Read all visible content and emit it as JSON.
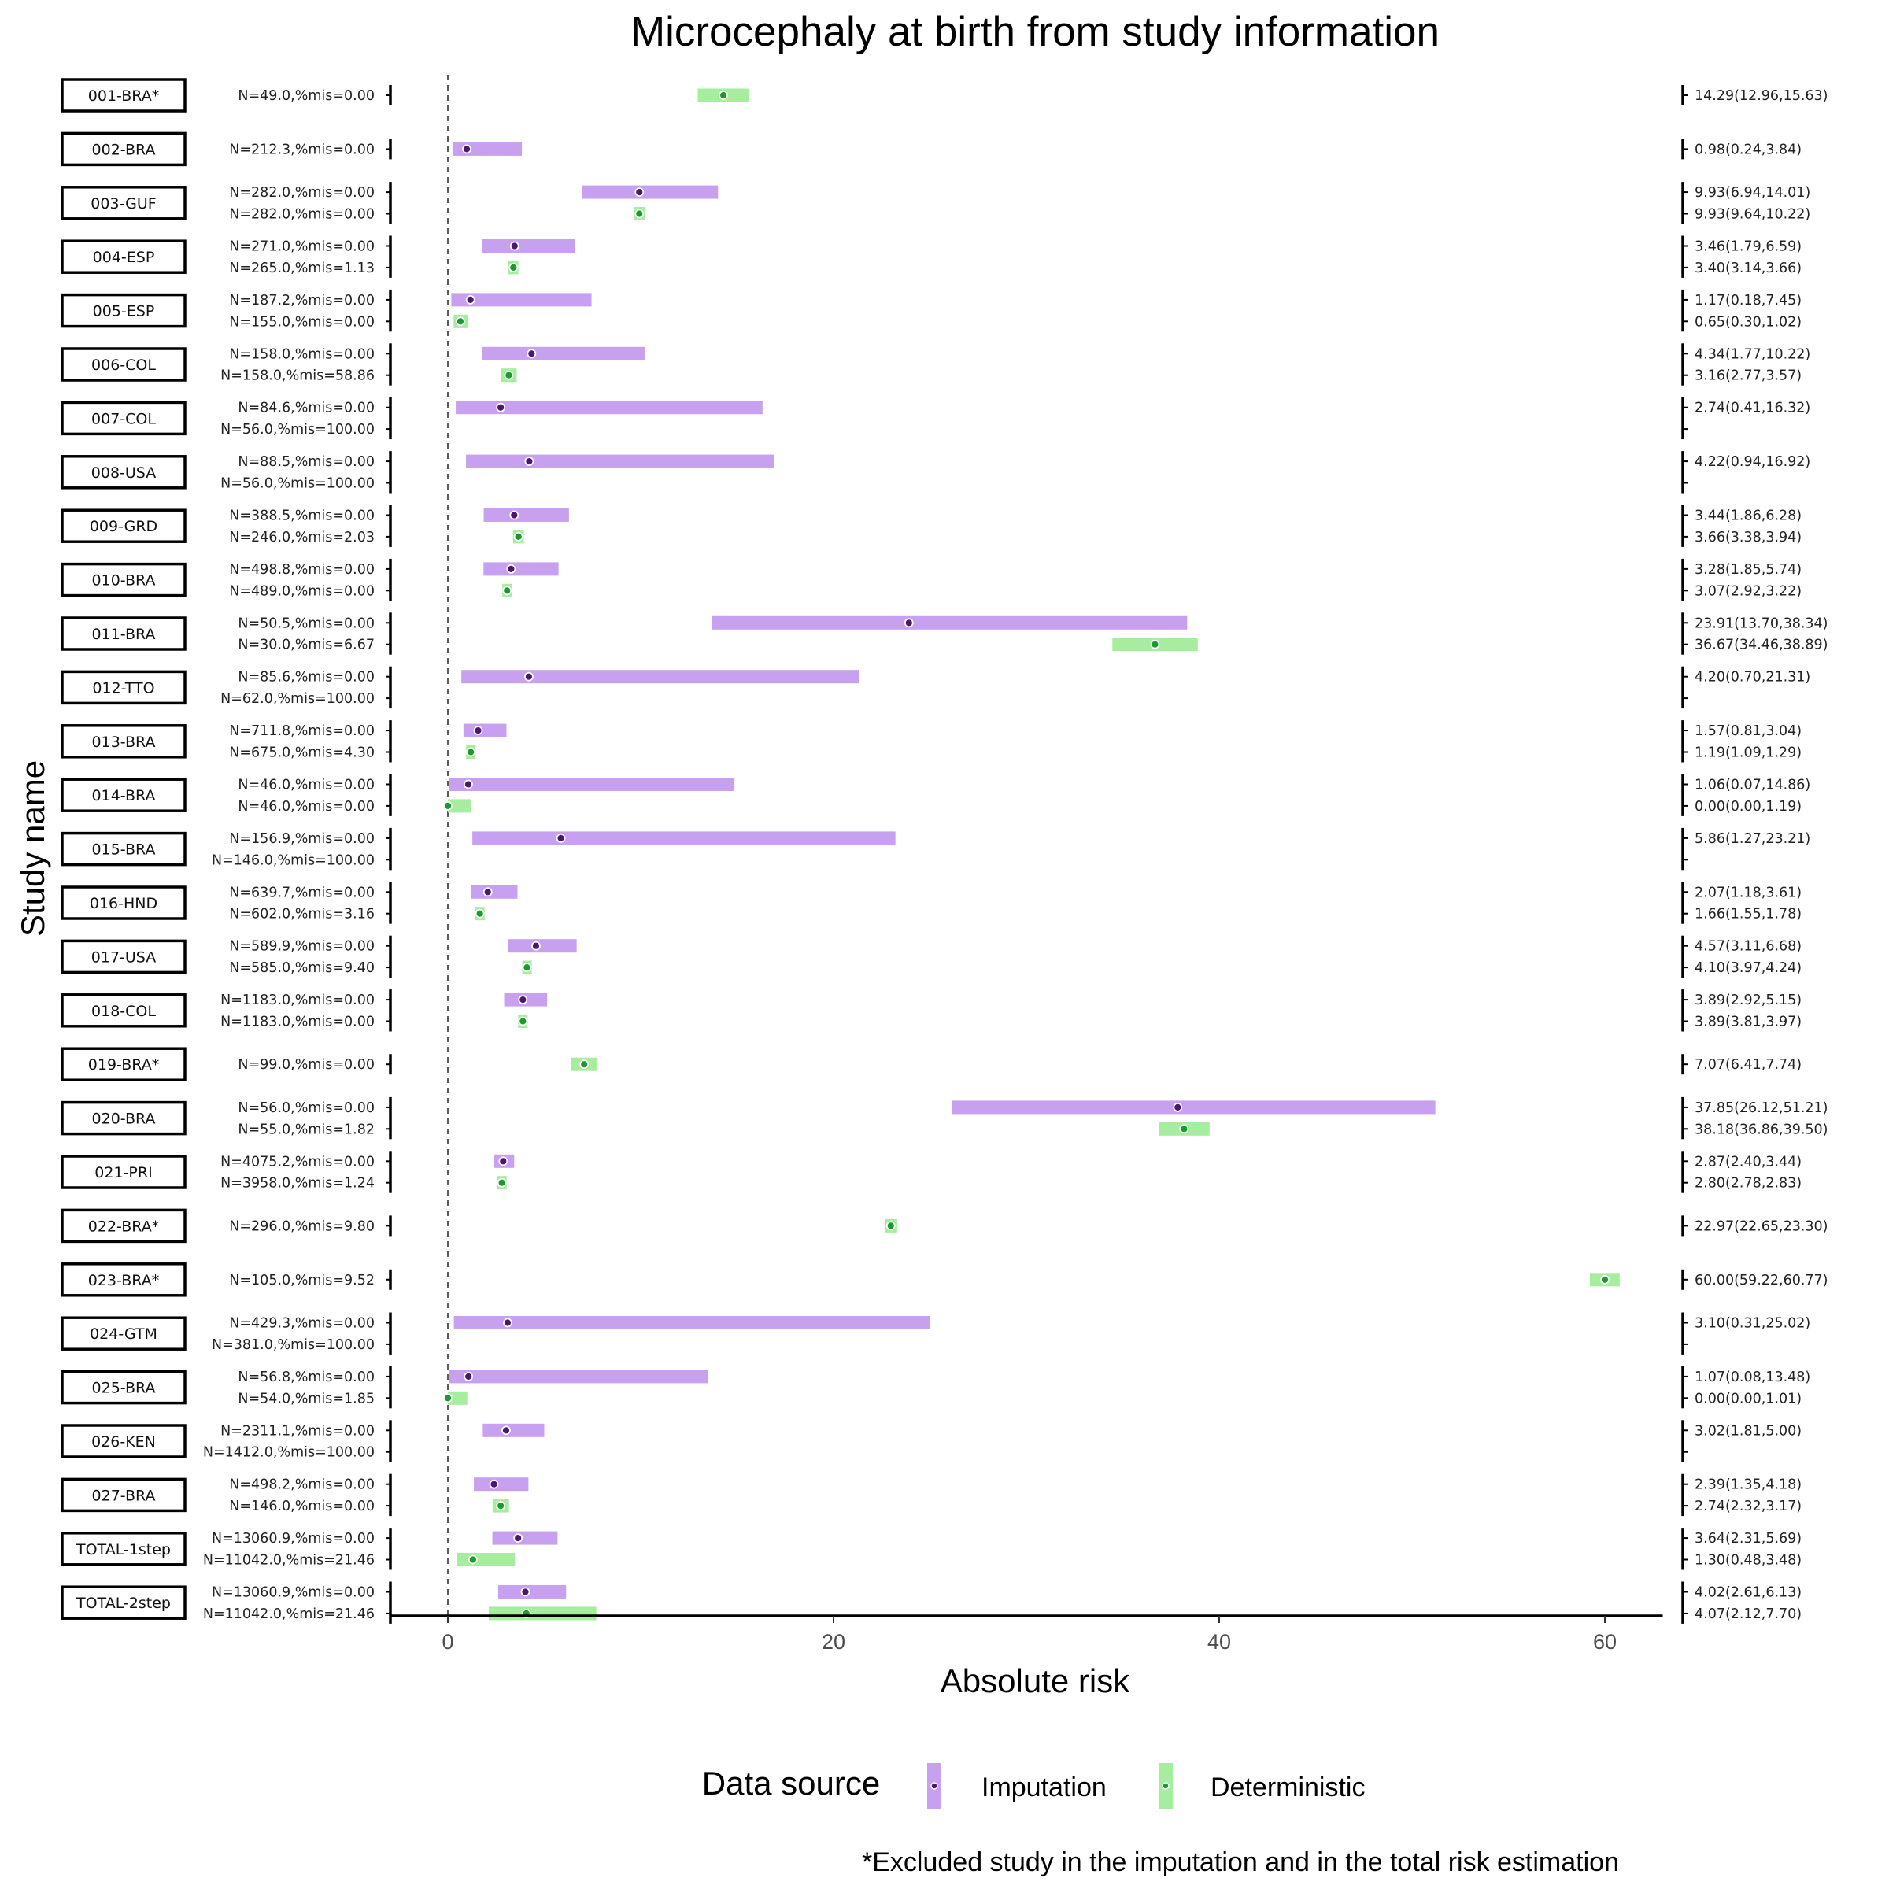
{
  "chart_data": {
    "type": "forest",
    "title": "Microcephaly at birth from study information",
    "xlabel": "Absolute risk",
    "ylabel": "Study name",
    "xlim": [
      -3,
      63
    ],
    "xticks": [
      0,
      20,
      40,
      60
    ],
    "reference_line": 0,
    "colors": {
      "Imputation": "#c8a0f0",
      "Imputation_point": "#4b1570",
      "Deterministic": "#a6eda0",
      "Deterministic_point": "#1a9a2a"
    },
    "legend": {
      "title": "Data source",
      "items": [
        "Imputation",
        "Deterministic"
      ],
      "position": "bottom"
    },
    "footnote": "*Excluded study in the imputation and in the total risk estimation",
    "studies": [
      {
        "name": "001-BRA*",
        "rows": [
          {
            "source": "Deterministic",
            "label": "N=49.0,%mis=0.00",
            "est": 14.29,
            "lo": 12.96,
            "hi": 15.63,
            "ci_text": "14.29(12.96,15.63)"
          }
        ]
      },
      {
        "name": "002-BRA",
        "rows": [
          {
            "source": "Imputation",
            "label": "N=212.3,%mis=0.00",
            "est": 0.98,
            "lo": 0.24,
            "hi": 3.84,
            "ci_text": "0.98(0.24,3.84)"
          }
        ]
      },
      {
        "name": "003-GUF",
        "rows": [
          {
            "source": "Imputation",
            "label": "N=282.0,%mis=0.00",
            "est": 9.93,
            "lo": 6.94,
            "hi": 14.01,
            "ci_text": "9.93(6.94,14.01)"
          },
          {
            "source": "Deterministic",
            "label": "N=282.0,%mis=0.00",
            "est": 9.93,
            "lo": 9.64,
            "hi": 10.22,
            "ci_text": "9.93(9.64,10.22)"
          }
        ]
      },
      {
        "name": "004-ESP",
        "rows": [
          {
            "source": "Imputation",
            "label": "N=271.0,%mis=0.00",
            "est": 3.46,
            "lo": 1.79,
            "hi": 6.59,
            "ci_text": "3.46(1.79,6.59)"
          },
          {
            "source": "Deterministic",
            "label": "N=265.0,%mis=1.13",
            "est": 3.4,
            "lo": 3.14,
            "hi": 3.66,
            "ci_text": "3.40(3.14,3.66)"
          }
        ]
      },
      {
        "name": "005-ESP",
        "rows": [
          {
            "source": "Imputation",
            "label": "N=187.2,%mis=0.00",
            "est": 1.17,
            "lo": 0.18,
            "hi": 7.45,
            "ci_text": "1.17(0.18,7.45)"
          },
          {
            "source": "Deterministic",
            "label": "N=155.0,%mis=0.00",
            "est": 0.65,
            "lo": 0.3,
            "hi": 1.02,
            "ci_text": "0.65(0.30,1.02)"
          }
        ]
      },
      {
        "name": "006-COL",
        "rows": [
          {
            "source": "Imputation",
            "label": "N=158.0,%mis=0.00",
            "est": 4.34,
            "lo": 1.77,
            "hi": 10.22,
            "ci_text": "4.34(1.77,10.22)"
          },
          {
            "source": "Deterministic",
            "label": "N=158.0,%mis=58.86",
            "est": 3.16,
            "lo": 2.77,
            "hi": 3.57,
            "ci_text": "3.16(2.77,3.57)"
          }
        ]
      },
      {
        "name": "007-COL",
        "rows": [
          {
            "source": "Imputation",
            "label": "N=84.6,%mis=0.00",
            "est": 2.74,
            "lo": 0.41,
            "hi": 16.32,
            "ci_text": "2.74(0.41,16.32)"
          },
          {
            "source": "Deterministic",
            "label": "N=56.0,%mis=100.00",
            "est": null,
            "lo": null,
            "hi": null,
            "ci_text": ""
          }
        ]
      },
      {
        "name": "008-USA",
        "rows": [
          {
            "source": "Imputation",
            "label": "N=88.5,%mis=0.00",
            "est": 4.22,
            "lo": 0.94,
            "hi": 16.92,
            "ci_text": "4.22(0.94,16.92)"
          },
          {
            "source": "Deterministic",
            "label": "N=56.0,%mis=100.00",
            "est": null,
            "lo": null,
            "hi": null,
            "ci_text": ""
          }
        ]
      },
      {
        "name": "009-GRD",
        "rows": [
          {
            "source": "Imputation",
            "label": "N=388.5,%mis=0.00",
            "est": 3.44,
            "lo": 1.86,
            "hi": 6.28,
            "ci_text": "3.44(1.86,6.28)"
          },
          {
            "source": "Deterministic",
            "label": "N=246.0,%mis=2.03",
            "est": 3.66,
            "lo": 3.38,
            "hi": 3.94,
            "ci_text": "3.66(3.38,3.94)"
          }
        ]
      },
      {
        "name": "010-BRA",
        "rows": [
          {
            "source": "Imputation",
            "label": "N=498.8,%mis=0.00",
            "est": 3.28,
            "lo": 1.85,
            "hi": 5.74,
            "ci_text": "3.28(1.85,5.74)"
          },
          {
            "source": "Deterministic",
            "label": "N=489.0,%mis=0.00",
            "est": 3.07,
            "lo": 2.92,
            "hi": 3.22,
            "ci_text": "3.07(2.92,3.22)"
          }
        ]
      },
      {
        "name": "011-BRA",
        "rows": [
          {
            "source": "Imputation",
            "label": "N=50.5,%mis=0.00",
            "est": 23.91,
            "lo": 13.7,
            "hi": 38.34,
            "ci_text": "23.91(13.70,38.34)"
          },
          {
            "source": "Deterministic",
            "label": "N=30.0,%mis=6.67",
            "est": 36.67,
            "lo": 34.46,
            "hi": 38.89,
            "ci_text": "36.67(34.46,38.89)"
          }
        ]
      },
      {
        "name": "012-TTO",
        "rows": [
          {
            "source": "Imputation",
            "label": "N=85.6,%mis=0.00",
            "est": 4.2,
            "lo": 0.7,
            "hi": 21.31,
            "ci_text": "4.20(0.70,21.31)"
          },
          {
            "source": "Deterministic",
            "label": "N=62.0,%mis=100.00",
            "est": null,
            "lo": null,
            "hi": null,
            "ci_text": ""
          }
        ]
      },
      {
        "name": "013-BRA",
        "rows": [
          {
            "source": "Imputation",
            "label": "N=711.8,%mis=0.00",
            "est": 1.57,
            "lo": 0.81,
            "hi": 3.04,
            "ci_text": "1.57(0.81,3.04)"
          },
          {
            "source": "Deterministic",
            "label": "N=675.0,%mis=4.30",
            "est": 1.19,
            "lo": 1.09,
            "hi": 1.29,
            "ci_text": "1.19(1.09,1.29)"
          }
        ]
      },
      {
        "name": "014-BRA",
        "rows": [
          {
            "source": "Imputation",
            "label": "N=46.0,%mis=0.00",
            "est": 1.06,
            "lo": 0.07,
            "hi": 14.86,
            "ci_text": "1.06(0.07,14.86)"
          },
          {
            "source": "Deterministic",
            "label": "N=46.0,%mis=0.00",
            "est": 0.0,
            "lo": 0.0,
            "hi": 1.19,
            "ci_text": "0.00(0.00,1.19)"
          }
        ]
      },
      {
        "name": "015-BRA",
        "rows": [
          {
            "source": "Imputation",
            "label": "N=156.9,%mis=0.00",
            "est": 5.86,
            "lo": 1.27,
            "hi": 23.21,
            "ci_text": "5.86(1.27,23.21)"
          },
          {
            "source": "Deterministic",
            "label": "N=146.0,%mis=100.00",
            "est": null,
            "lo": null,
            "hi": null,
            "ci_text": ""
          }
        ]
      },
      {
        "name": "016-HND",
        "rows": [
          {
            "source": "Imputation",
            "label": "N=639.7,%mis=0.00",
            "est": 2.07,
            "lo": 1.18,
            "hi": 3.61,
            "ci_text": "2.07(1.18,3.61)"
          },
          {
            "source": "Deterministic",
            "label": "N=602.0,%mis=3.16",
            "est": 1.66,
            "lo": 1.55,
            "hi": 1.78,
            "ci_text": "1.66(1.55,1.78)"
          }
        ]
      },
      {
        "name": "017-USA",
        "rows": [
          {
            "source": "Imputation",
            "label": "N=589.9,%mis=0.00",
            "est": 4.57,
            "lo": 3.11,
            "hi": 6.68,
            "ci_text": "4.57(3.11,6.68)"
          },
          {
            "source": "Deterministic",
            "label": "N=585.0,%mis=9.40",
            "est": 4.1,
            "lo": 3.97,
            "hi": 4.24,
            "ci_text": "4.10(3.97,4.24)"
          }
        ]
      },
      {
        "name": "018-COL",
        "rows": [
          {
            "source": "Imputation",
            "label": "N=1183.0,%mis=0.00",
            "est": 3.89,
            "lo": 2.92,
            "hi": 5.15,
            "ci_text": "3.89(2.92,5.15)"
          },
          {
            "source": "Deterministic",
            "label": "N=1183.0,%mis=0.00",
            "est": 3.89,
            "lo": 3.81,
            "hi": 3.97,
            "ci_text": "3.89(3.81,3.97)"
          }
        ]
      },
      {
        "name": "019-BRA*",
        "rows": [
          {
            "source": "Deterministic",
            "label": "N=99.0,%mis=0.00",
            "est": 7.07,
            "lo": 6.41,
            "hi": 7.74,
            "ci_text": "7.07(6.41,7.74)"
          }
        ]
      },
      {
        "name": "020-BRA",
        "rows": [
          {
            "source": "Imputation",
            "label": "N=56.0,%mis=0.00",
            "est": 37.85,
            "lo": 26.12,
            "hi": 51.21,
            "ci_text": "37.85(26.12,51.21)"
          },
          {
            "source": "Deterministic",
            "label": "N=55.0,%mis=1.82",
            "est": 38.18,
            "lo": 36.86,
            "hi": 39.5,
            "ci_text": "38.18(36.86,39.50)"
          }
        ]
      },
      {
        "name": "021-PRI",
        "rows": [
          {
            "source": "Imputation",
            "label": "N=4075.2,%mis=0.00",
            "est": 2.87,
            "lo": 2.4,
            "hi": 3.44,
            "ci_text": "2.87(2.40,3.44)"
          },
          {
            "source": "Deterministic",
            "label": "N=3958.0,%mis=1.24",
            "est": 2.8,
            "lo": 2.78,
            "hi": 2.83,
            "ci_text": "2.80(2.78,2.83)"
          }
        ]
      },
      {
        "name": "022-BRA*",
        "rows": [
          {
            "source": "Deterministic",
            "label": "N=296.0,%mis=9.80",
            "est": 22.97,
            "lo": 22.65,
            "hi": 23.3,
            "ci_text": "22.97(22.65,23.30)"
          }
        ]
      },
      {
        "name": "023-BRA*",
        "rows": [
          {
            "source": "Deterministic",
            "label": "N=105.0,%mis=9.52",
            "est": 60.0,
            "lo": 59.22,
            "hi": 60.77,
            "ci_text": "60.00(59.22,60.77)"
          }
        ]
      },
      {
        "name": "024-GTM",
        "rows": [
          {
            "source": "Imputation",
            "label": "N=429.3,%mis=0.00",
            "est": 3.1,
            "lo": 0.31,
            "hi": 25.02,
            "ci_text": "3.10(0.31,25.02)"
          },
          {
            "source": "Deterministic",
            "label": "N=381.0,%mis=100.00",
            "est": null,
            "lo": null,
            "hi": null,
            "ci_text": ""
          }
        ]
      },
      {
        "name": "025-BRA",
        "rows": [
          {
            "source": "Imputation",
            "label": "N=56.8,%mis=0.00",
            "est": 1.07,
            "lo": 0.08,
            "hi": 13.48,
            "ci_text": "1.07(0.08,13.48)"
          },
          {
            "source": "Deterministic",
            "label": "N=54.0,%mis=1.85",
            "est": 0.0,
            "lo": 0.0,
            "hi": 1.01,
            "ci_text": "0.00(0.00,1.01)"
          }
        ]
      },
      {
        "name": "026-KEN",
        "rows": [
          {
            "source": "Imputation",
            "label": "N=2311.1,%mis=0.00",
            "est": 3.02,
            "lo": 1.81,
            "hi": 5.0,
            "ci_text": "3.02(1.81,5.00)"
          },
          {
            "source": "Deterministic",
            "label": "N=1412.0,%mis=100.00",
            "est": null,
            "lo": null,
            "hi": null,
            "ci_text": ""
          }
        ]
      },
      {
        "name": "027-BRA",
        "rows": [
          {
            "source": "Imputation",
            "label": "N=498.2,%mis=0.00",
            "est": 2.39,
            "lo": 1.35,
            "hi": 4.18,
            "ci_text": "2.39(1.35,4.18)"
          },
          {
            "source": "Deterministic",
            "label": "N=146.0,%mis=0.00",
            "est": 2.74,
            "lo": 2.32,
            "hi": 3.17,
            "ci_text": "2.74(2.32,3.17)"
          }
        ]
      },
      {
        "name": "TOTAL-1step",
        "rows": [
          {
            "source": "Imputation",
            "label": "N=13060.9,%mis=0.00",
            "est": 3.64,
            "lo": 2.31,
            "hi": 5.69,
            "ci_text": "3.64(2.31,5.69)"
          },
          {
            "source": "Deterministic",
            "label": "N=11042.0,%mis=21.46",
            "est": 1.3,
            "lo": 0.48,
            "hi": 3.48,
            "ci_text": "1.30(0.48,3.48)"
          }
        ]
      },
      {
        "name": "TOTAL-2step",
        "rows": [
          {
            "source": "Imputation",
            "label": "N=13060.9,%mis=0.00",
            "est": 4.02,
            "lo": 2.61,
            "hi": 6.13,
            "ci_text": "4.02(2.61,6.13)"
          },
          {
            "source": "Deterministic",
            "label": "N=11042.0,%mis=21.46",
            "est": 4.07,
            "lo": 2.12,
            "hi": 7.7,
            "ci_text": "4.07(2.12,7.70)"
          }
        ]
      }
    ]
  }
}
